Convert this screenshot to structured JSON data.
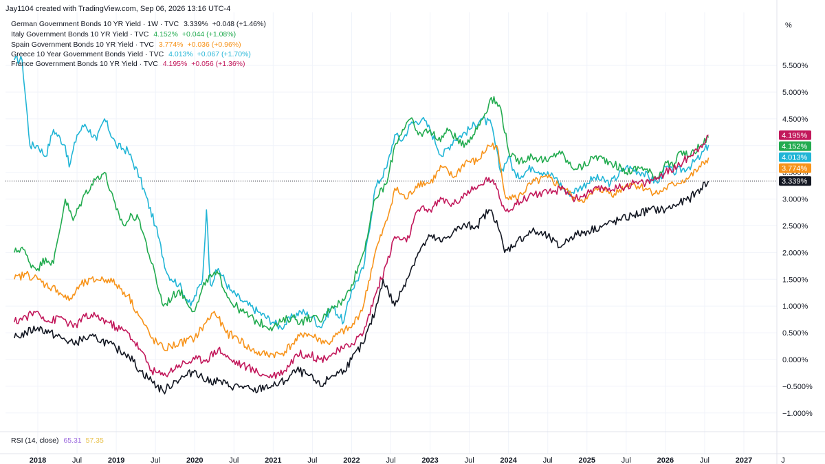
{
  "header": {
    "credit": "Jay1104 created with TradingView.com, Sep 06, 2026 13:16 UTC-4",
    "legend": [
      {
        "label": "German Government Bonds 10 YR Yield · 1W · TVC",
        "value": "3.339%",
        "change": "+0.048 (+1.46%)",
        "value_color": "#131722"
      },
      {
        "label": "Italy Government Bonds 10 YR Yield · TVC",
        "value": "4.152%",
        "change": "+0.044 (+1.08%)",
        "value_color": "#22ab4f"
      },
      {
        "label": "Spain Government Bonds 10 YR Yield · TVC",
        "value": "3.774%",
        "change": "+0.036 (+0.96%)",
        "value_color": "#f7931a"
      },
      {
        "label": "Greece 10 Year Government Bonds Yield · TVC",
        "value": "4.013%",
        "change": "+0.067 (+1.70%)",
        "value_color": "#21b5d6"
      },
      {
        "label": "France Government Bonds 10 YR Yield · TVC",
        "value": "4.195%",
        "change": "+0.056 (+1.36%)",
        "value_color": "#c2185b"
      }
    ],
    "scale_unit": "%"
  },
  "rsi": {
    "label": "RSI (14, close)",
    "value1": "65.31",
    "value2": "57.35",
    "color1": "#9c6ade",
    "color2": "#e8c14a"
  },
  "chart_data": {
    "type": "line",
    "x_range": [
      2017.7,
      2027.2
    ],
    "ylim": [
      -1.25,
      5.95
    ],
    "y_ticks": [
      -1.0,
      -0.5,
      0.0,
      0.5,
      1.0,
      1.5,
      2.0,
      2.5,
      3.0,
      3.5,
      4.0,
      4.5,
      5.0,
      5.5
    ],
    "y_tick_labels": [
      "−1.000%",
      "−0.500%",
      "0.000%",
      "0.500%",
      "1.000%",
      "1.500%",
      "2.000%",
      "2.500%",
      "3.000%",
      "3.500%",
      "4.000%",
      "4.500%",
      "5.000%",
      "5.500%"
    ],
    "x_ticks": [
      {
        "x": 2018.0,
        "label": "2018",
        "year": true
      },
      {
        "x": 2018.5,
        "label": "Jul",
        "year": false
      },
      {
        "x": 2019.0,
        "label": "2019",
        "year": true
      },
      {
        "x": 2019.5,
        "label": "Jul",
        "year": false
      },
      {
        "x": 2020.0,
        "label": "2020",
        "year": true
      },
      {
        "x": 2020.5,
        "label": "Jul",
        "year": false
      },
      {
        "x": 2021.0,
        "label": "2021",
        "year": true
      },
      {
        "x": 2021.5,
        "label": "Jul",
        "year": false
      },
      {
        "x": 2022.0,
        "label": "2022",
        "year": true
      },
      {
        "x": 2022.5,
        "label": "Jul",
        "year": false
      },
      {
        "x": 2023.0,
        "label": "2023",
        "year": true
      },
      {
        "x": 2023.5,
        "label": "Jul",
        "year": false
      },
      {
        "x": 2024.0,
        "label": "2024",
        "year": true
      },
      {
        "x": 2024.5,
        "label": "Jul",
        "year": false
      },
      {
        "x": 2025.0,
        "label": "2025",
        "year": true
      },
      {
        "x": 2025.5,
        "label": "Jul",
        "year": false
      },
      {
        "x": 2026.0,
        "label": "2026",
        "year": true
      },
      {
        "x": 2026.5,
        "label": "Jul",
        "year": false
      },
      {
        "x": 2027.0,
        "label": "2027",
        "year": true
      },
      {
        "x": 2027.5,
        "label": "J",
        "year": false
      }
    ],
    "grid": true,
    "price_line": {
      "value": 3.339,
      "style": "dotted"
    },
    "series": [
      {
        "key": "greece",
        "color": "#21b5d6",
        "last_label": "4.013%",
        "x": [
          2017.7,
          2017.8,
          2017.9,
          2018.0,
          2018.1,
          2018.2,
          2018.35,
          2018.4,
          2018.5,
          2018.6,
          2018.75,
          2018.85,
          2019.0,
          2019.15,
          2019.3,
          2019.5,
          2019.65,
          2019.8,
          2019.95,
          2020.1,
          2020.15,
          2020.2,
          2020.3,
          2020.45,
          2020.6,
          2020.8,
          2021.0,
          2021.1,
          2021.25,
          2021.35,
          2021.5,
          2021.6,
          2021.75,
          2021.9,
          2022.0,
          2022.15,
          2022.3,
          2022.45,
          2022.55,
          2022.65,
          2022.75,
          2022.9,
          2023.0,
          2023.15,
          2023.3,
          2023.5,
          2023.65,
          2023.78,
          2023.9,
          2024.0,
          2024.1,
          2024.3,
          2024.45,
          2024.6,
          2024.75,
          2024.9,
          2025.0,
          2025.1,
          2025.3,
          2025.5,
          2025.7,
          2025.9,
          2026.0,
          2026.1,
          2026.3,
          2026.45,
          2026.55
        ],
        "y": [
          5.6,
          5.6,
          4.0,
          4.0,
          3.8,
          4.3,
          4.0,
          3.6,
          4.2,
          4.4,
          4.1,
          4.5,
          4.0,
          3.9,
          3.4,
          2.5,
          1.6,
          1.4,
          1.0,
          1.5,
          2.8,
          1.4,
          1.7,
          1.3,
          1.1,
          0.9,
          0.7,
          0.6,
          0.8,
          0.9,
          0.8,
          0.6,
          1.0,
          0.7,
          1.3,
          1.7,
          3.2,
          3.6,
          4.2,
          4.1,
          4.4,
          4.5,
          4.3,
          3.8,
          4.1,
          4.3,
          4.5,
          4.4,
          3.5,
          3.8,
          3.4,
          3.6,
          3.5,
          3.4,
          3.1,
          3.2,
          3.3,
          3.4,
          3.3,
          3.6,
          3.5,
          3.3,
          3.6,
          3.5,
          3.6,
          3.8,
          4.013
        ]
      },
      {
        "key": "italy",
        "color": "#22ab4f",
        "last_label": "4.152%",
        "x": [
          2017.7,
          2017.8,
          2017.9,
          2018.0,
          2018.1,
          2018.2,
          2018.35,
          2018.45,
          2018.6,
          2018.75,
          2018.85,
          2019.0,
          2019.1,
          2019.2,
          2019.3,
          2019.45,
          2019.6,
          2019.8,
          2020.0,
          2020.15,
          2020.3,
          2020.45,
          2020.6,
          2020.8,
          2021.0,
          2021.1,
          2021.25,
          2021.35,
          2021.5,
          2021.6,
          2021.75,
          2021.9,
          2022.0,
          2022.15,
          2022.3,
          2022.45,
          2022.55,
          2022.65,
          2022.75,
          2022.85,
          2023.0,
          2023.1,
          2023.25,
          2023.4,
          2023.55,
          2023.7,
          2023.78,
          2023.9,
          2024.0,
          2024.1,
          2024.3,
          2024.5,
          2024.65,
          2024.8,
          2024.95,
          2025.1,
          2025.3,
          2025.5,
          2025.7,
          2025.9,
          2026.0,
          2026.1,
          2026.2,
          2026.3,
          2026.45,
          2026.55
        ],
        "y": [
          2.0,
          2.1,
          1.8,
          1.7,
          1.9,
          1.8,
          3.0,
          2.6,
          3.1,
          3.4,
          3.5,
          2.8,
          2.5,
          2.7,
          2.6,
          1.8,
          1.0,
          1.3,
          0.9,
          1.5,
          1.6,
          1.1,
          0.9,
          0.7,
          0.6,
          0.7,
          0.8,
          0.7,
          0.8,
          0.7,
          1.0,
          1.1,
          1.4,
          2.0,
          3.0,
          3.3,
          4.0,
          4.3,
          4.5,
          4.2,
          4.3,
          4.1,
          4.3,
          4.0,
          4.2,
          4.6,
          4.9,
          4.7,
          3.9,
          3.7,
          3.8,
          3.7,
          3.9,
          3.6,
          3.6,
          3.8,
          3.7,
          3.5,
          3.6,
          3.4,
          3.7,
          3.6,
          3.9,
          3.8,
          4.0,
          4.152
        ]
      },
      {
        "key": "spain",
        "color": "#f7931a",
        "last_label": "3.774%",
        "x": [
          2017.7,
          2017.85,
          2018.0,
          2018.1,
          2018.25,
          2018.4,
          2018.55,
          2018.75,
          2018.9,
          2019.0,
          2019.15,
          2019.3,
          2019.45,
          2019.6,
          2019.8,
          2020.0,
          2020.15,
          2020.25,
          2020.4,
          2020.55,
          2020.7,
          2020.85,
          2021.0,
          2021.1,
          2021.25,
          2021.4,
          2021.55,
          2021.7,
          2021.85,
          2022.0,
          2022.15,
          2022.3,
          2022.45,
          2022.55,
          2022.7,
          2022.85,
          2023.0,
          2023.15,
          2023.3,
          2023.45,
          2023.6,
          2023.75,
          2023.85,
          2023.95,
          2024.1,
          2024.3,
          2024.5,
          2024.7,
          2024.85,
          2025.0,
          2025.15,
          2025.35,
          2025.55,
          2025.75,
          2025.9,
          2026.0,
          2026.15,
          2026.3,
          2026.45,
          2026.55
        ],
        "y": [
          1.5,
          1.6,
          1.5,
          1.4,
          1.3,
          1.1,
          1.4,
          1.5,
          1.5,
          1.4,
          1.2,
          0.8,
          0.4,
          0.2,
          0.3,
          0.4,
          0.7,
          0.9,
          0.5,
          0.4,
          0.2,
          0.1,
          0.1,
          0.1,
          0.3,
          0.5,
          0.4,
          0.3,
          0.5,
          0.6,
          1.0,
          2.0,
          2.6,
          3.2,
          3.0,
          3.3,
          3.3,
          3.6,
          3.4,
          3.7,
          3.7,
          4.0,
          4.0,
          3.1,
          3.0,
          3.3,
          3.4,
          3.2,
          3.0,
          3.0,
          3.2,
          3.1,
          3.3,
          3.2,
          3.1,
          3.2,
          3.3,
          3.4,
          3.6,
          3.774
        ]
      },
      {
        "key": "france",
        "color": "#c2185b",
        "last_label": "4.195%",
        "x": [
          2017.7,
          2017.85,
          2018.0,
          2018.15,
          2018.3,
          2018.45,
          2018.6,
          2018.75,
          2018.9,
          2019.0,
          2019.15,
          2019.3,
          2019.45,
          2019.6,
          2019.8,
          2020.0,
          2020.15,
          2020.3,
          2020.45,
          2020.6,
          2020.75,
          2020.9,
          2021.0,
          2021.15,
          2021.3,
          2021.45,
          2021.6,
          2021.75,
          2021.9,
          2022.0,
          2022.15,
          2022.3,
          2022.45,
          2022.55,
          2022.7,
          2022.85,
          2023.0,
          2023.15,
          2023.3,
          2023.45,
          2023.6,
          2023.75,
          2023.85,
          2023.95,
          2024.1,
          2024.3,
          2024.5,
          2024.7,
          2024.85,
          2025.0,
          2025.2,
          2025.4,
          2025.6,
          2025.75,
          2025.9,
          2026.0,
          2026.15,
          2026.3,
          2026.45,
          2026.55
        ],
        "y": [
          0.7,
          0.8,
          0.9,
          0.7,
          0.8,
          0.6,
          0.8,
          0.8,
          0.7,
          0.6,
          0.5,
          0.2,
          -0.2,
          -0.3,
          -0.1,
          0.0,
          0.0,
          0.2,
          0.0,
          -0.1,
          -0.2,
          -0.3,
          -0.3,
          -0.2,
          0.1,
          0.1,
          0.0,
          0.1,
          0.2,
          0.3,
          0.5,
          1.2,
          1.8,
          2.3,
          2.2,
          2.8,
          2.8,
          3.0,
          2.9,
          3.1,
          3.2,
          3.4,
          3.2,
          2.8,
          2.9,
          3.1,
          3.1,
          3.2,
          3.0,
          3.1,
          3.2,
          3.2,
          3.3,
          3.3,
          3.4,
          3.5,
          3.6,
          3.8,
          4.0,
          4.195
        ]
      },
      {
        "key": "germany",
        "color": "#131722",
        "last_label": "3.339%",
        "x": [
          2017.7,
          2017.85,
          2018.0,
          2018.15,
          2018.3,
          2018.45,
          2018.6,
          2018.75,
          2018.9,
          2019.0,
          2019.15,
          2019.3,
          2019.45,
          2019.6,
          2019.75,
          2019.9,
          2020.0,
          2020.15,
          2020.3,
          2020.45,
          2020.6,
          2020.75,
          2020.9,
          2021.0,
          2021.15,
          2021.3,
          2021.45,
          2021.6,
          2021.75,
          2021.9,
          2022.0,
          2022.15,
          2022.3,
          2022.4,
          2022.55,
          2022.7,
          2022.85,
          2023.0,
          2023.15,
          2023.3,
          2023.45,
          2023.6,
          2023.75,
          2023.85,
          2023.95,
          2024.1,
          2024.3,
          2024.5,
          2024.65,
          2024.8,
          2025.0,
          2025.2,
          2025.4,
          2025.6,
          2025.8,
          2026.0,
          2026.15,
          2026.3,
          2026.45,
          2026.55
        ],
        "y": [
          0.4,
          0.5,
          0.6,
          0.5,
          0.4,
          0.3,
          0.4,
          0.4,
          0.3,
          0.2,
          0.1,
          -0.2,
          -0.4,
          -0.6,
          -0.4,
          -0.3,
          -0.2,
          -0.4,
          -0.4,
          -0.5,
          -0.5,
          -0.6,
          -0.5,
          -0.5,
          -0.4,
          -0.2,
          -0.3,
          -0.5,
          -0.3,
          -0.2,
          0.0,
          0.3,
          0.9,
          1.5,
          1.0,
          1.5,
          2.0,
          2.3,
          2.2,
          2.4,
          2.5,
          2.5,
          2.8,
          2.6,
          2.0,
          2.2,
          2.4,
          2.3,
          2.1,
          2.3,
          2.4,
          2.5,
          2.6,
          2.7,
          2.8,
          2.8,
          2.9,
          3.0,
          3.2,
          3.339
        ]
      }
    ]
  }
}
